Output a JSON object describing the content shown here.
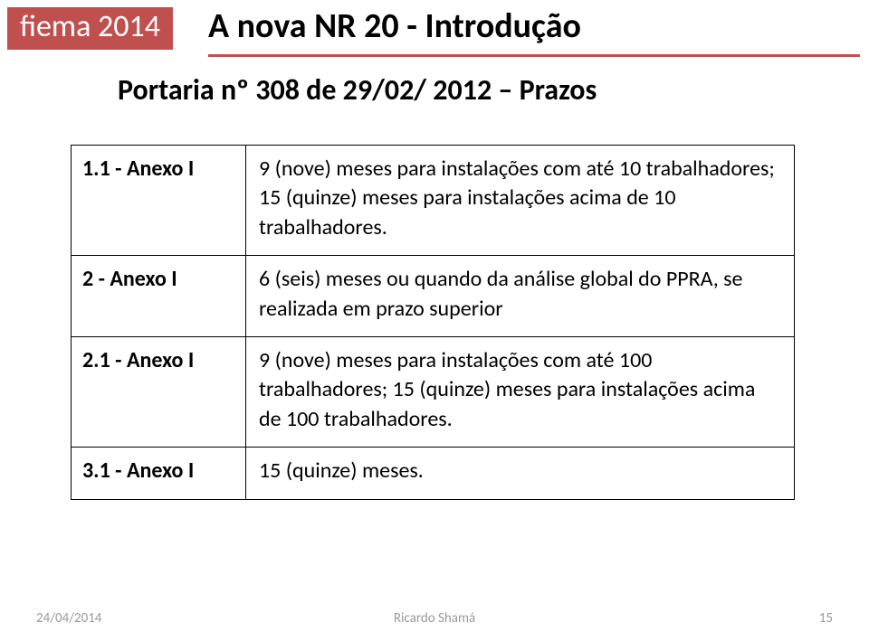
{
  "badge": "fiema 2014",
  "title": "A nova NR 20 - Introdução",
  "subtitle": "Portaria nº 308 de 29/02/ 2012 – Prazos",
  "colors": {
    "accent": "#c0504d",
    "text": "#000000",
    "footer": "#9a9a9a",
    "background": "#ffffff",
    "border": "#000000"
  },
  "table": {
    "rows": [
      {
        "label": "1.1 - Anexo I",
        "desc": "9 (nove) meses para instalações com até 10 trabalhadores;\n15 (quinze) meses para instalações acima de 10 trabalhadores."
      },
      {
        "label": "2 - Anexo I",
        "desc": "6 (seis) meses ou quando da análise global do PPRA, se realizada em prazo superior"
      },
      {
        "label": "2.1 - Anexo I",
        "desc": "9 (nove) meses para instalações com até 100 trabalhadores;\n15 (quinze) meses para instalações acima de 100 trabalhadores."
      },
      {
        "label": "3.1 - Anexo I",
        "desc": "15 (quinze) meses."
      }
    ]
  },
  "footer": {
    "date": "24/04/2014",
    "author": "Ricardo Shamá",
    "page": "15"
  }
}
